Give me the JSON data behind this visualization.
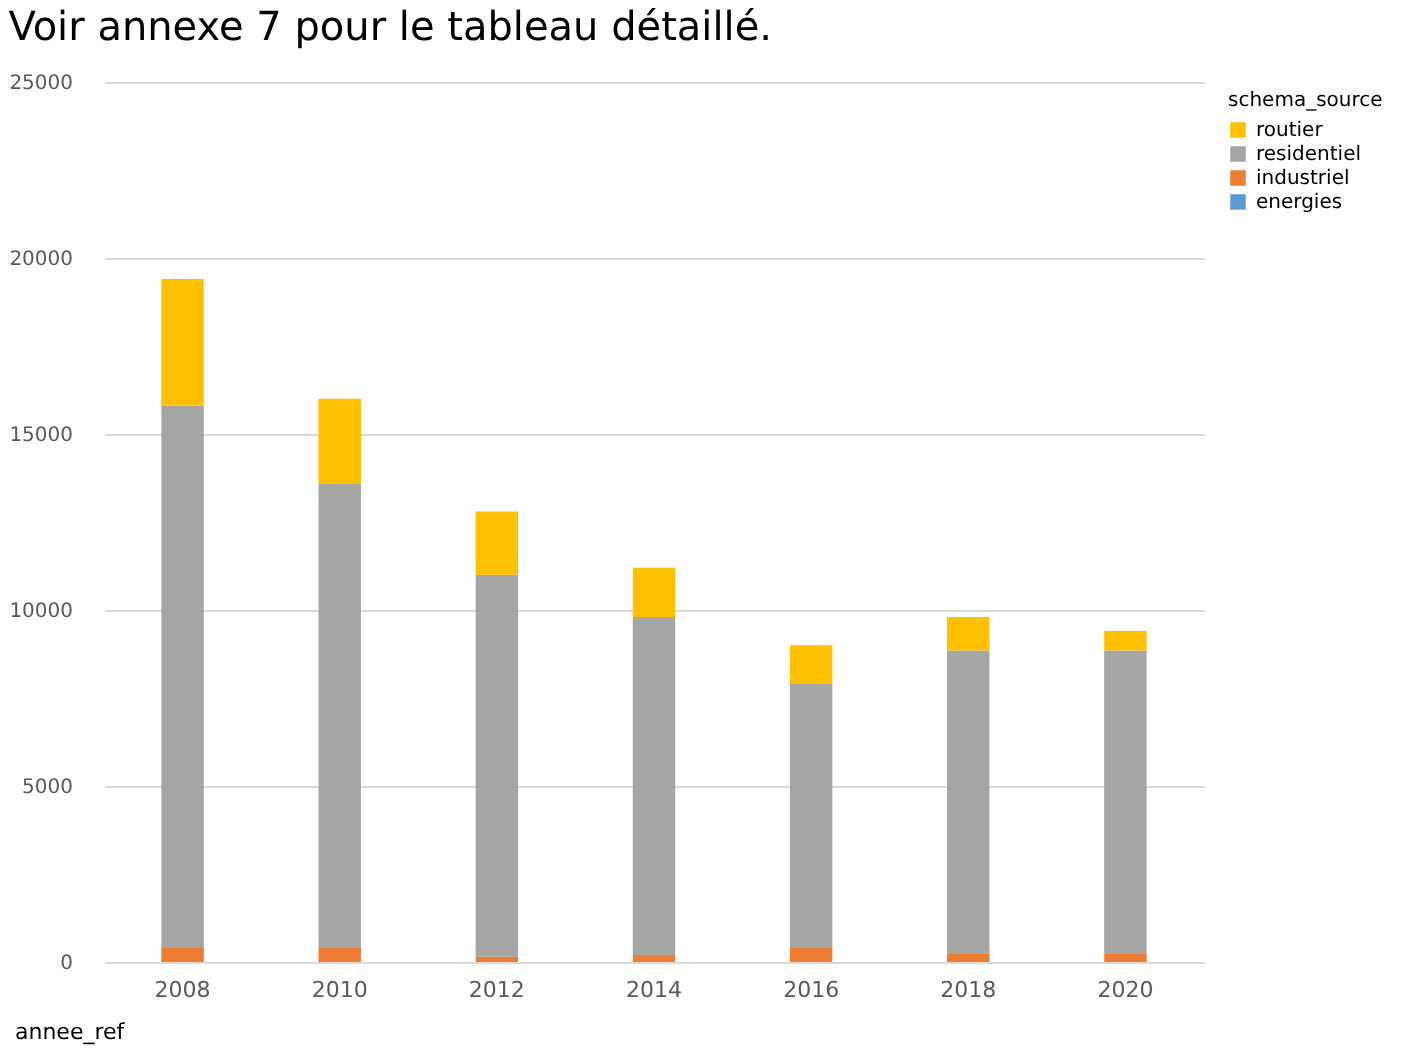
{
  "chart_data": {
    "type": "bar",
    "stacked": true,
    "annotations": [
      "Voir annexe 7 pour le tableau détaillé."
    ],
    "xlabel": "annee_ref",
    "legend_title": "schema_source",
    "legend": "right",
    "grid": "y",
    "categories": [
      "2008",
      "2010",
      "2012",
      "2014",
      "2016",
      "2018",
      "2020"
    ],
    "ylim": [
      0,
      25000
    ],
    "yticks": [
      0,
      5000,
      10000,
      15000,
      20000,
      25000
    ],
    "series": [
      {
        "name": "energies",
        "color": "#5b9bd5",
        "values": [
          0,
          0,
          0,
          0,
          0,
          0,
          0
        ]
      },
      {
        "name": "industriel",
        "color": "#ed7d31",
        "values": [
          400,
          400,
          150,
          200,
          400,
          250,
          250
        ]
      },
      {
        "name": "residentiel",
        "color": "#a5a5a5",
        "values": [
          15400,
          13200,
          10850,
          9600,
          7500,
          8600,
          8600
        ]
      },
      {
        "name": "routier",
        "color": "#ffc000",
        "values": [
          3600,
          2400,
          1800,
          1400,
          1100,
          950,
          550
        ]
      }
    ]
  }
}
